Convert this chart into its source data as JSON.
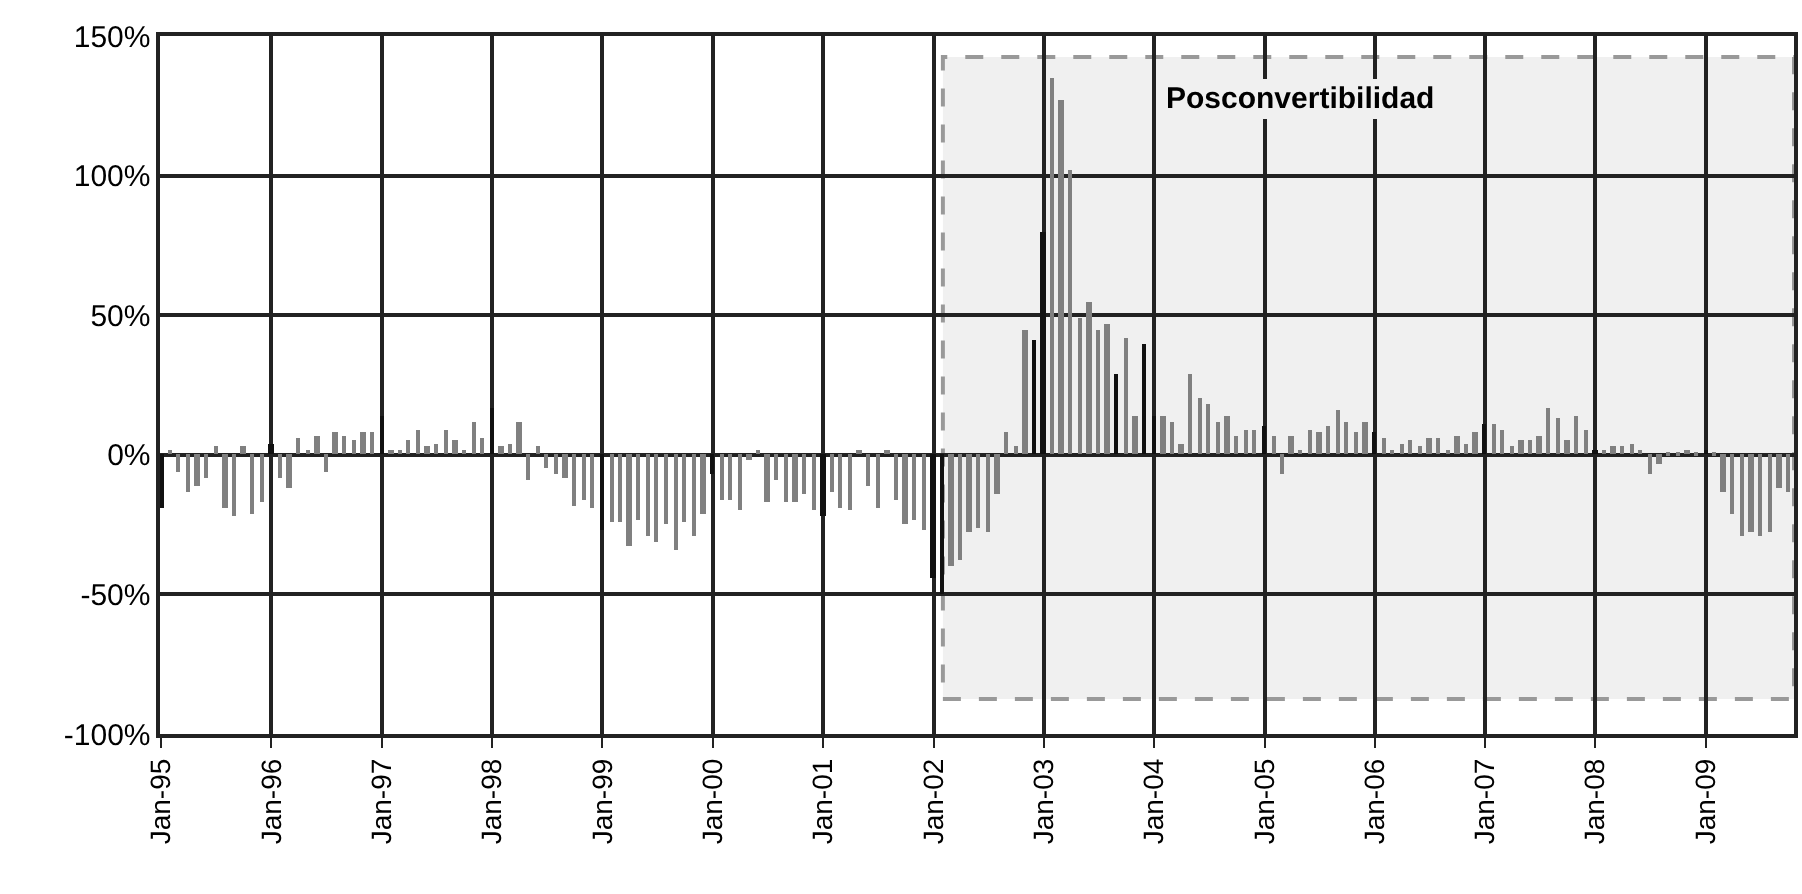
{
  "chart_data": {
    "type": "bar",
    "x": [
      "1995-01",
      "1995-02",
      "1995-03",
      "1995-04",
      "1995-05",
      "1995-06",
      "1995-07",
      "1995-08",
      "1995-09",
      "1995-10",
      "1995-11",
      "1995-12",
      "1996-01",
      "1996-02",
      "1996-03",
      "1996-04",
      "1996-05",
      "1996-06",
      "1996-07",
      "1996-08",
      "1996-09",
      "1996-10",
      "1996-11",
      "1996-12",
      "1997-01",
      "1997-02",
      "1997-03",
      "1997-04",
      "1997-05",
      "1997-06",
      "1997-07",
      "1997-08",
      "1997-09",
      "1997-10",
      "1997-11",
      "1997-12",
      "1998-01",
      "1998-02",
      "1998-03",
      "1998-04",
      "1998-05",
      "1998-06",
      "1998-07",
      "1998-08",
      "1998-09",
      "1998-10",
      "1998-11",
      "1998-12",
      "1999-01",
      "1999-02",
      "1999-03",
      "1999-04",
      "1999-05",
      "1999-06",
      "1999-07",
      "1999-08",
      "1999-09",
      "1999-10",
      "1999-11",
      "1999-12",
      "2000-01",
      "2000-02",
      "2000-03",
      "2000-04",
      "2000-05",
      "2000-06",
      "2000-07",
      "2000-08",
      "2000-09",
      "2000-10",
      "2000-11",
      "2000-12",
      "2001-01",
      "2001-02",
      "2001-03",
      "2001-04",
      "2001-05",
      "2001-06",
      "2001-07",
      "2001-08",
      "2001-09",
      "2001-10",
      "2001-11",
      "2001-12",
      "2002-01",
      "2002-02",
      "2002-03",
      "2002-04",
      "2002-05",
      "2002-06",
      "2002-07",
      "2002-08",
      "2002-09",
      "2002-10",
      "2002-11",
      "2002-12",
      "2003-01",
      "2003-02",
      "2003-03",
      "2003-04",
      "2003-05",
      "2003-06",
      "2003-07",
      "2003-08",
      "2003-09",
      "2003-10",
      "2003-11",
      "2003-12",
      "2004-01",
      "2004-02",
      "2004-03",
      "2004-04",
      "2004-05",
      "2004-06",
      "2004-07",
      "2004-08",
      "2004-09",
      "2004-10",
      "2004-11",
      "2004-12",
      "2005-01",
      "2005-02",
      "2005-03",
      "2005-04",
      "2005-05",
      "2005-06",
      "2005-07",
      "2005-08",
      "2005-09",
      "2005-10",
      "2005-11",
      "2005-12",
      "2006-01",
      "2006-02",
      "2006-03",
      "2006-04",
      "2006-05",
      "2006-06",
      "2006-07",
      "2006-08",
      "2006-09",
      "2006-10",
      "2006-11",
      "2006-12",
      "2007-01",
      "2007-02",
      "2007-03",
      "2007-04",
      "2007-05",
      "2007-06",
      "2007-07",
      "2007-08",
      "2007-09",
      "2007-10",
      "2007-11",
      "2007-12",
      "2008-01",
      "2008-02",
      "2008-03",
      "2008-04",
      "2008-05",
      "2008-06",
      "2008-07",
      "2008-08",
      "2008-09",
      "2008-10",
      "2008-11",
      "2008-12",
      "2009-01",
      "2009-02",
      "2009-03",
      "2009-04",
      "2009-05",
      "2009-06",
      "2009-07",
      "2009-08",
      "2009-09",
      "2009-10"
    ],
    "values": [
      -19,
      2,
      -6,
      -13,
      -11,
      -8,
      3,
      -19,
      -22,
      3,
      -21,
      -17,
      4,
      -8,
      -12,
      6,
      2,
      7,
      -6,
      8,
      7,
      5,
      8,
      8,
      14,
      2,
      2,
      5,
      9,
      3,
      4,
      9,
      5,
      2,
      12,
      6,
      17,
      3,
      4,
      12,
      -9,
      3,
      -5,
      -7,
      -8,
      -18,
      -16,
      -19,
      -27,
      -24,
      -24,
      -33,
      -23,
      -29,
      -31,
      -25,
      -34,
      -24,
      -29,
      -21,
      -7,
      -16,
      -16,
      -20,
      -2,
      2,
      -17,
      -9,
      -17,
      -17,
      -14,
      -20,
      -22,
      -13,
      -19,
      -20,
      2,
      -11,
      -19,
      2,
      -16,
      -25,
      -23,
      -27,
      -44,
      -50,
      -40,
      -38,
      -28,
      -26,
      -28,
      -14,
      8,
      3,
      45,
      41,
      80,
      135,
      127,
      102,
      49,
      55,
      45,
      47,
      29,
      42,
      14,
      40,
      14,
      14,
      12,
      4,
      29,
      20,
      18,
      12,
      14,
      7,
      9,
      9,
      10,
      7,
      -7,
      7,
      2,
      9,
      8,
      10,
      16,
      12,
      8,
      12,
      8,
      6,
      2,
      4,
      5,
      3,
      6,
      6,
      2,
      7,
      4,
      8,
      11,
      11,
      9,
      3,
      5,
      5,
      7,
      17,
      13,
      5,
      14,
      9,
      2,
      2,
      3,
      3,
      4,
      2,
      -7,
      -3,
      1,
      1,
      2,
      1,
      2,
      1,
      -13,
      -21,
      -29,
      -28,
      -29,
      -28,
      -12,
      -13
    ],
    "colors": [
      "#111111",
      "#808080",
      "#808080",
      "#808080",
      "#808080",
      "#808080",
      "#808080",
      "#808080",
      "#808080",
      "#808080",
      "#808080",
      "#808080",
      "#111111",
      "#808080",
      "#808080",
      "#808080",
      "#808080",
      "#808080",
      "#808080",
      "#808080",
      "#808080",
      "#808080",
      "#808080",
      "#808080",
      "#111111",
      "#808080",
      "#808080",
      "#808080",
      "#808080",
      "#808080",
      "#808080",
      "#808080",
      "#808080",
      "#808080",
      "#808080",
      "#808080",
      "#111111",
      "#808080",
      "#808080",
      "#808080",
      "#808080",
      "#808080",
      "#808080",
      "#808080",
      "#808080",
      "#808080",
      "#808080",
      "#808080",
      "#111111",
      "#808080",
      "#808080",
      "#808080",
      "#808080",
      "#808080",
      "#808080",
      "#808080",
      "#808080",
      "#808080",
      "#808080",
      "#808080",
      "#111111",
      "#808080",
      "#808080",
      "#808080",
      "#808080",
      "#808080",
      "#808080",
      "#808080",
      "#808080",
      "#808080",
      "#808080",
      "#808080",
      "#111111",
      "#808080",
      "#808080",
      "#808080",
      "#808080",
      "#808080",
      "#808080",
      "#808080",
      "#808080",
      "#808080",
      "#808080",
      "#808080",
      "#111111",
      "#111111",
      "#808080",
      "#808080",
      "#808080",
      "#808080",
      "#808080",
      "#808080",
      "#808080",
      "#808080",
      "#808080",
      "#111111",
      "#111111",
      "#808080",
      "#808080",
      "#808080",
      "#808080",
      "#808080",
      "#808080",
      "#808080",
      "#111111",
      "#808080",
      "#808080",
      "#111111",
      "#111111",
      "#808080",
      "#808080",
      "#808080",
      "#808080",
      "#808080",
      "#808080",
      "#808080",
      "#808080",
      "#808080",
      "#808080",
      "#808080",
      "#111111",
      "#808080",
      "#808080",
      "#808080",
      "#808080",
      "#808080",
      "#808080",
      "#808080",
      "#808080",
      "#808080",
      "#808080",
      "#808080",
      "#111111",
      "#808080",
      "#808080",
      "#808080",
      "#808080",
      "#808080",
      "#808080",
      "#808080",
      "#808080",
      "#808080",
      "#808080",
      "#808080",
      "#111111",
      "#808080",
      "#808080",
      "#808080",
      "#808080",
      "#808080",
      "#808080",
      "#808080",
      "#808080",
      "#808080",
      "#808080",
      "#808080",
      "#111111",
      "#808080",
      "#808080",
      "#808080",
      "#808080",
      "#808080",
      "#808080",
      "#808080",
      "#808080",
      "#808080",
      "#808080",
      "#808080",
      "#111111",
      "#808080",
      "#808080",
      "#808080",
      "#808080",
      "#808080",
      "#808080",
      "#808080",
      "#808080",
      "#808080"
    ],
    "xlim": [
      "1994-12-28",
      "2009-10-20"
    ],
    "xticks": [
      {
        "value": "1995-01",
        "label": "Jan-95"
      },
      {
        "value": "1996-01",
        "label": "Jan-96"
      },
      {
        "value": "1997-01",
        "label": "Jan-97"
      },
      {
        "value": "1998-01",
        "label": "Jan-98"
      },
      {
        "value": "1999-01",
        "label": "Jan-99"
      },
      {
        "value": "2000-01",
        "label": "Jan-00"
      },
      {
        "value": "2001-01",
        "label": "Jan-01"
      },
      {
        "value": "2002-01",
        "label": "Jan-02"
      },
      {
        "value": "2003-01",
        "label": "Jan-03"
      },
      {
        "value": "2004-01",
        "label": "Jan-04"
      },
      {
        "value": "2005-01",
        "label": "Jan-05"
      },
      {
        "value": "2006-01",
        "label": "Jan-06"
      },
      {
        "value": "2007-01",
        "label": "Jan-07"
      },
      {
        "value": "2008-01",
        "label": "Jan-08"
      },
      {
        "value": "2009-01",
        "label": "Jan-09"
      }
    ],
    "ylim": [
      -100,
      150
    ],
    "yticks": [
      {
        "value": -100,
        "label": "-100%"
      },
      {
        "value": -50,
        "label": "-50%"
      },
      {
        "value": 0,
        "label": "0%"
      },
      {
        "value": 50,
        "label": "50%"
      },
      {
        "value": 100,
        "label": "100%"
      },
      {
        "value": 150,
        "label": "150%"
      }
    ],
    "grid": true,
    "bands": [
      {
        "axis": "x",
        "from": "2002-02",
        "to": "2009-10-20",
        "label": "Posconvertibilidad",
        "color": "#f0f0f0"
      }
    ]
  }
}
